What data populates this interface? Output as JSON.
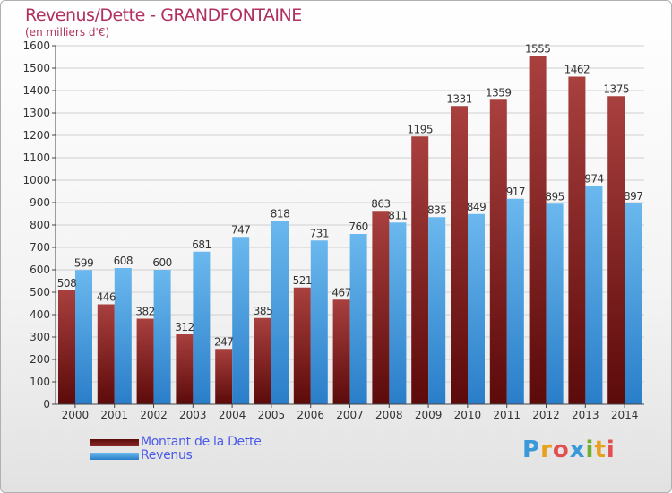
{
  "colors": {
    "title": "#b03060",
    "legend_text": "#4a5ae8",
    "debt_dark": "#5c0a0a",
    "debt_light": "#a8403e",
    "revenue_dark": "#2a7ec9",
    "revenue_light": "#6ab8ee",
    "grid": "#d0d0d0"
  },
  "chart_data": {
    "type": "bar",
    "title": "Revenus/Dette - GRANDFONTAINE",
    "subtitle": "(en milliers d'€)",
    "categories": [
      "2000",
      "2001",
      "2002",
      "2003",
      "2004",
      "2005",
      "2006",
      "2007",
      "2008",
      "2009",
      "2010",
      "2011",
      "2012",
      "2013",
      "2014"
    ],
    "series": [
      {
        "name": "Montant de la Dette",
        "values": [
          508,
          446,
          382,
          312,
          247,
          385,
          521,
          467,
          863,
          1195,
          1331,
          1359,
          1555,
          1462,
          1375
        ]
      },
      {
        "name": "Revenus",
        "values": [
          599,
          608,
          600,
          681,
          747,
          818,
          731,
          760,
          811,
          835,
          849,
          917,
          895,
          974,
          897
        ]
      }
    ],
    "ylim": [
      0,
      1600
    ],
    "yticks": [
      0,
      100,
      200,
      300,
      400,
      500,
      600,
      700,
      800,
      900,
      1000,
      1100,
      1200,
      1300,
      1400,
      1500,
      1600
    ],
    "grid": true,
    "legend_position": "bottom-left"
  },
  "logo": {
    "text": "Proxiti",
    "letter_colors": [
      "#3a9ad9",
      "#e8a020",
      "#e05050",
      "#3a9ad9",
      "#70b030",
      "#e8a020",
      "#e05050"
    ]
  }
}
